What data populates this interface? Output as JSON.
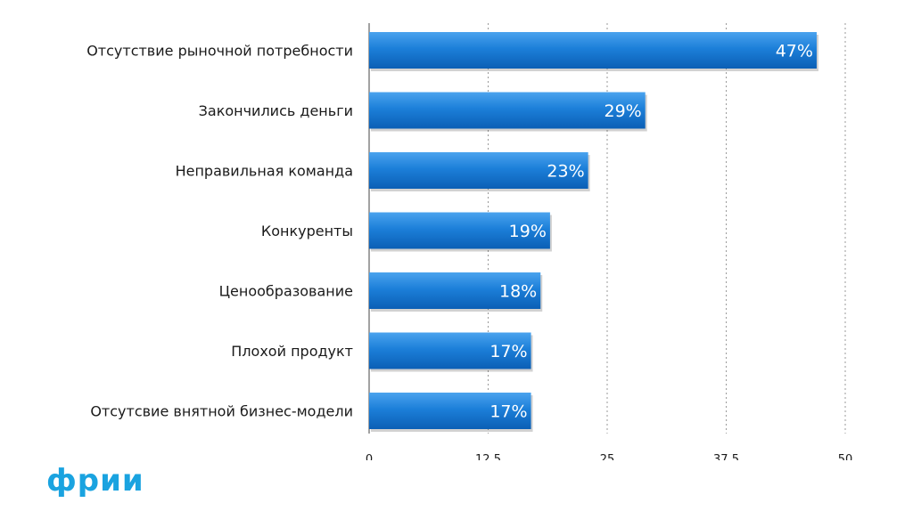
{
  "colors": {
    "bar_top": "#4aa3ee",
    "bar_mid": "#1c7fd9",
    "bar_bottom": "#0b5fb5",
    "brand": "#1aa3e0"
  },
  "brand": {
    "text": "фрии"
  },
  "chart_data": {
    "type": "bar",
    "orientation": "horizontal",
    "title": "",
    "xlabel": "",
    "ylabel": "",
    "categories": [
      "Отсутствие рыночной потребности",
      "Закончились деньги",
      "Неправильная команда",
      "Конкуренты",
      "Ценообразование",
      "Плохой продукт",
      "Отсутсвие внятной бизнес-модели"
    ],
    "values": [
      47,
      29,
      23,
      19,
      18,
      17,
      17
    ],
    "data_labels": [
      "47%",
      "29%",
      "23%",
      "19%",
      "18%",
      "17%",
      "17%"
    ],
    "xlim": [
      0,
      50
    ],
    "x_ticks": [
      0,
      12.5,
      25,
      37.5,
      50
    ],
    "x_tick_labels": [
      "0",
      "12,5",
      "25",
      "37,5",
      "50"
    ],
    "grid": true,
    "legend": "none"
  }
}
